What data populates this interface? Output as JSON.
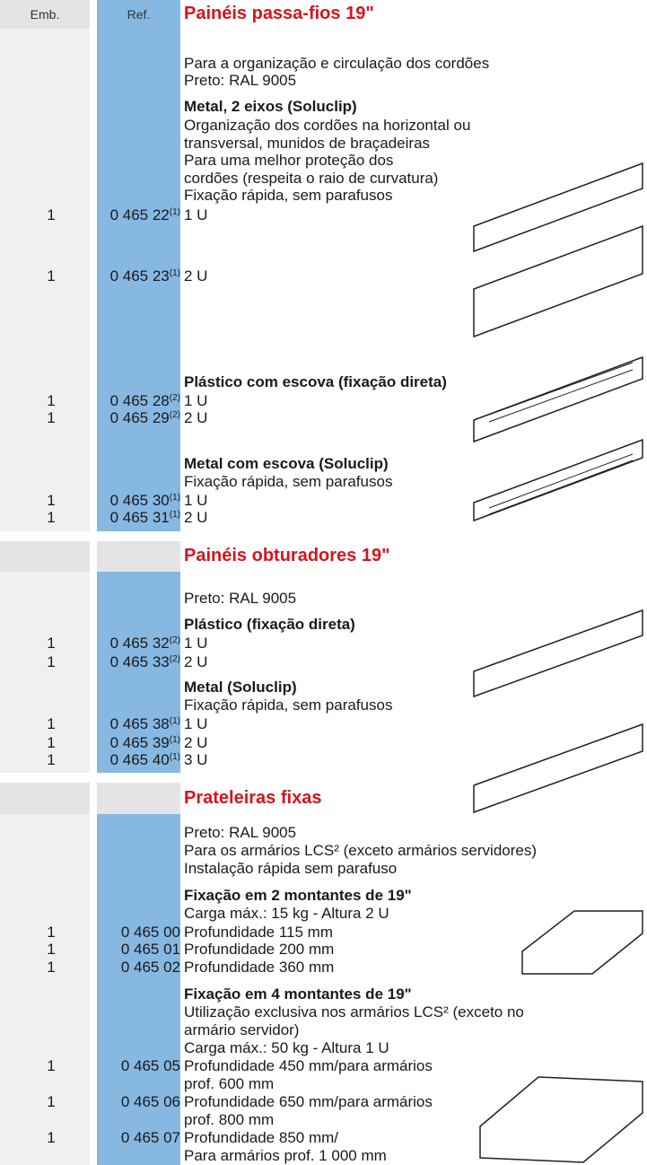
{
  "columns": {
    "emb": "Emb.",
    "ref": "Ref."
  },
  "sections": [
    {
      "title": "Painéis passa-fios 19\"",
      "intro": [
        "Para a organização e circulação dos cordões",
        "Preto: RAL 9005"
      ],
      "groups": [
        {
          "heading": "Metal, 2 eixos (Soluclip)",
          "lines": [
            "Organização dos cordões na horizontal ou",
            "transversal, munidos de braçadeiras",
            "Para uma melhor proteção dos",
            "cordões (respeita o raio de curvatura)",
            "Fixação rápida, sem parafusos"
          ],
          "items": [
            {
              "emb": "1",
              "ref": "0 465 22",
              "note": "(1)",
              "label": [
                "1 U"
              ]
            },
            {
              "emb": "1",
              "ref": "0 465 23",
              "note": "(1)",
              "label": [
                "2 U"
              ]
            }
          ]
        },
        {
          "heading": "Plástico com escova (fixação direta)",
          "lines": [],
          "items": [
            {
              "emb": "1",
              "ref": "0 465 28",
              "note": "(2)",
              "label": [
                "1 U"
              ]
            },
            {
              "emb": "1",
              "ref": "0 465 29",
              "note": "(2)",
              "label": [
                "2 U"
              ]
            }
          ]
        },
        {
          "heading": "Metal com escova (Soluclip)",
          "lines": [
            "Fixação rápida, sem parafusos"
          ],
          "items": [
            {
              "emb": "1",
              "ref": "0 465 30",
              "note": "(1)",
              "label": [
                "1 U"
              ]
            },
            {
              "emb": "1",
              "ref": "0 465 31",
              "note": "(1)",
              "label": [
                "2 U"
              ]
            }
          ]
        }
      ]
    },
    {
      "title": "Painéis obturadores 19\"",
      "intro": [
        "Preto: RAL 9005"
      ],
      "groups": [
        {
          "heading": "Plástico (fixação direta)",
          "lines": [],
          "items": [
            {
              "emb": "1",
              "ref": "0 465 32",
              "note": "(2)",
              "label": [
                "1 U"
              ]
            },
            {
              "emb": "1",
              "ref": "0 465 33",
              "note": "(2)",
              "label": [
                "2 U"
              ]
            }
          ]
        },
        {
          "heading": "Metal (Soluclip)",
          "lines": [
            "Fixação rápida, sem parafusos"
          ],
          "items": [
            {
              "emb": "1",
              "ref": "0 465 38",
              "note": "(1)",
              "label": [
                "1 U"
              ]
            },
            {
              "emb": "1",
              "ref": "0 465 39",
              "note": "(1)",
              "label": [
                "2 U"
              ]
            },
            {
              "emb": "1",
              "ref": "0 465 40",
              "note": "(1)",
              "label": [
                "3 U"
              ]
            }
          ]
        }
      ]
    },
    {
      "title": "Prateleiras fixas",
      "intro": [
        "Preto: RAL 9005",
        "Para os armários LCS² (exceto armários servidores)",
        "Instalação rápida sem parafuso"
      ],
      "groups": [
        {
          "heading": "Fixação em 2 montantes de 19\"",
          "lines": [
            "Carga máx.: 15 kg - Altura 2 U"
          ],
          "items": [
            {
              "emb": "1",
              "ref": "0 465 00",
              "label": [
                "Profundidade 115 mm"
              ]
            },
            {
              "emb": "1",
              "ref": "0 465 01",
              "label": [
                "Profundidade 200 mm"
              ]
            },
            {
              "emb": "1",
              "ref": "0 465 02",
              "label": [
                "Profundidade 360 mm"
              ]
            }
          ]
        },
        {
          "heading": "Fixação em 4 montantes de 19\"",
          "lines": [
            "Utilização exclusiva nos armários LCS² (exceto no",
            "armário servidor)",
            "Carga máx.: 50 kg - Altura 1 U"
          ],
          "items": [
            {
              "emb": "1",
              "ref": "0 465 05",
              "label": [
                "Profundidade 450 mm/para armários",
                "prof. 600 mm"
              ]
            },
            {
              "emb": "1",
              "ref": "0 465 06",
              "label": [
                "Profundidade 650 mm/para armários",
                "prof. 800 mm"
              ]
            },
            {
              "emb": "1",
              "ref": "0 465 07",
              "label": [
                "Profundidade 850 mm/",
                "Para armários prof. 1 000 mm"
              ]
            }
          ]
        }
      ]
    }
  ]
}
